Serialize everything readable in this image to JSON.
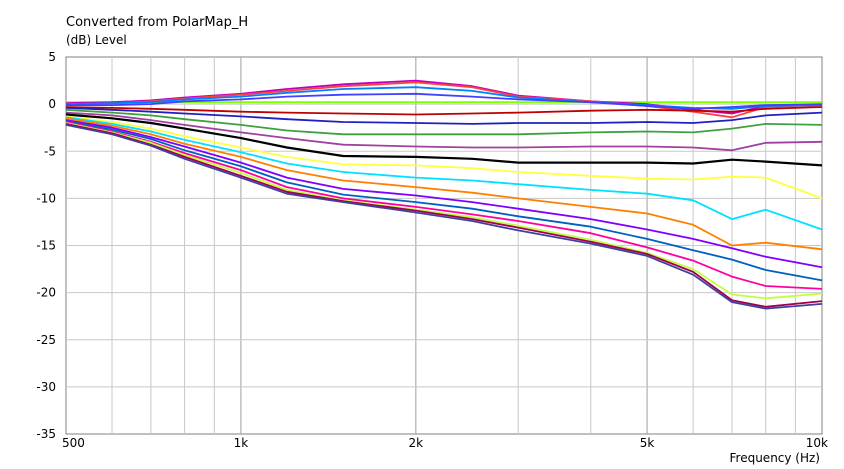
{
  "chart_data": {
    "type": "line",
    "title": "Converted from PolarMap_H",
    "ylabel": "(dB)  Level",
    "xlabel": "Frequency  (Hz)",
    "x_scale": "log",
    "xlim": [
      500,
      10000
    ],
    "ylim": [
      -35,
      5
    ],
    "grid": true,
    "legend": "none",
    "x_ticks": [
      {
        "value": 500,
        "label": "500"
      },
      {
        "value": 1000,
        "label": "1k"
      },
      {
        "value": 2000,
        "label": "2k"
      },
      {
        "value": 5000,
        "label": "5k"
      },
      {
        "value": 10000,
        "label": "10k"
      }
    ],
    "y_ticks": [
      {
        "value": 5,
        "label": "5"
      },
      {
        "value": 0,
        "label": "0"
      },
      {
        "value": -5,
        "label": "-5"
      },
      {
        "value": -10,
        "label": "-10"
      },
      {
        "value": -15,
        "label": "-15"
      },
      {
        "value": -20,
        "label": "-20"
      },
      {
        "value": -25,
        "label": "-25"
      },
      {
        "value": -30,
        "label": "-30"
      },
      {
        "value": -35,
        "label": "-35"
      }
    ],
    "x": [
      500,
      600,
      700,
      800,
      1000,
      1200,
      1500,
      2000,
      2500,
      3000,
      4000,
      5000,
      6000,
      7000,
      8000,
      10000
    ],
    "series": [
      {
        "color": "#80ff00",
        "values": [
          0.2,
          0.2,
          0.2,
          0.2,
          0.2,
          0.2,
          0.2,
          0.2,
          0.2,
          0.2,
          0.2,
          0.2,
          0.2,
          0.2,
          0.2,
          0.2
        ]
      },
      {
        "color": "#c000c0",
        "values": [
          0.1,
          0.2,
          0.4,
          0.7,
          1.1,
          1.6,
          2.1,
          2.5,
          1.9,
          0.9,
          0.3,
          0.0,
          -0.6,
          -1.0,
          -0.2,
          -0.1
        ]
      },
      {
        "color": "#ff4040",
        "values": [
          0.0,
          0.1,
          0.3,
          0.6,
          1.0,
          1.4,
          1.9,
          2.3,
          1.8,
          0.8,
          0.3,
          -0.2,
          -0.8,
          -1.4,
          -0.3,
          -0.1
        ]
      },
      {
        "color": "#0080ff",
        "values": [
          0.0,
          0.1,
          0.2,
          0.5,
          0.8,
          1.2,
          1.6,
          1.8,
          1.4,
          0.7,
          0.2,
          -0.1,
          -0.4,
          -0.5,
          -0.2,
          -0.1
        ]
      },
      {
        "color": "#4040ff",
        "values": [
          -0.1,
          -0.1,
          0.0,
          0.3,
          0.5,
          0.8,
          1.0,
          1.1,
          0.8,
          0.5,
          0.2,
          -0.2,
          -0.5,
          -0.3,
          -0.1,
          0.0
        ]
      },
      {
        "color": "#c00000",
        "values": [
          -0.3,
          -0.4,
          -0.5,
          -0.6,
          -0.8,
          -0.9,
          -1.0,
          -1.1,
          -1.0,
          -0.9,
          -0.7,
          -0.6,
          -0.7,
          -0.8,
          -0.5,
          -0.3
        ]
      },
      {
        "color": "#2020c0",
        "values": [
          -0.4,
          -0.6,
          -0.8,
          -1.0,
          -1.3,
          -1.6,
          -1.9,
          -2.0,
          -2.1,
          -2.0,
          -2.0,
          -1.9,
          -2.0,
          -1.7,
          -1.2,
          -0.9
        ]
      },
      {
        "color": "#40a040",
        "values": [
          -0.6,
          -0.9,
          -1.2,
          -1.6,
          -2.2,
          -2.8,
          -3.2,
          -3.2,
          -3.2,
          -3.2,
          -3.0,
          -2.9,
          -3.0,
          -2.6,
          -2.1,
          -2.2
        ]
      },
      {
        "color": "#a040a0",
        "values": [
          -0.9,
          -1.2,
          -1.7,
          -2.2,
          -3.0,
          -3.6,
          -4.3,
          -4.5,
          -4.6,
          -4.6,
          -4.5,
          -4.5,
          -4.6,
          -4.9,
          -4.1,
          -4.0
        ]
      },
      {
        "color": "#000000",
        "values": [
          -1.1,
          -1.5,
          -2.0,
          -2.6,
          -3.6,
          -4.6,
          -5.5,
          -5.6,
          -5.8,
          -6.2,
          -6.2,
          -6.2,
          -6.3,
          -5.9,
          -6.1,
          -6.5
        ]
      },
      {
        "color": "#ffff40",
        "values": [
          -1.3,
          -1.9,
          -2.6,
          -3.4,
          -4.6,
          -5.6,
          -6.4,
          -6.5,
          -6.8,
          -7.2,
          -7.6,
          -7.9,
          -8.0,
          -7.7,
          -7.8,
          -10.0
        ]
      },
      {
        "color": "#00e0ff",
        "values": [
          -1.4,
          -2.1,
          -2.9,
          -3.8,
          -5.1,
          -6.3,
          -7.2,
          -7.8,
          -8.1,
          -8.5,
          -9.1,
          -9.5,
          -10.2,
          -12.2,
          -11.2,
          -13.3
        ]
      },
      {
        "color": "#ff8000",
        "values": [
          -1.5,
          -2.3,
          -3.2,
          -4.2,
          -5.6,
          -7.0,
          -8.1,
          -8.8,
          -9.4,
          -10.0,
          -10.9,
          -11.6,
          -12.8,
          -15.0,
          -14.7,
          -15.4
        ]
      },
      {
        "color": "#8000ff",
        "values": [
          -1.7,
          -2.5,
          -3.5,
          -4.5,
          -6.2,
          -7.8,
          -9.0,
          -9.7,
          -10.4,
          -11.1,
          -12.2,
          -13.3,
          -14.3,
          -15.3,
          -16.2,
          -17.3
        ]
      },
      {
        "color": "#0060c0",
        "values": [
          -1.8,
          -2.7,
          -3.7,
          -4.9,
          -6.6,
          -8.3,
          -9.6,
          -10.4,
          -11.1,
          -11.9,
          -13.0,
          -14.3,
          -15.5,
          -16.5,
          -17.6,
          -18.7
        ]
      },
      {
        "color": "#ff00a0",
        "values": [
          -1.9,
          -2.9,
          -4.0,
          -5.2,
          -7.0,
          -8.8,
          -10.0,
          -10.9,
          -11.7,
          -12.4,
          -13.7,
          -15.2,
          -16.6,
          -18.3,
          -19.3,
          -19.6
        ]
      },
      {
        "color": "#c0ff40",
        "values": [
          -2.0,
          -3.0,
          -4.1,
          -5.4,
          -7.3,
          -9.1,
          -10.2,
          -11.2,
          -12.0,
          -12.9,
          -14.4,
          -15.8,
          -17.5,
          -20.2,
          -20.6,
          -20.1
        ]
      },
      {
        "color": "#a00050",
        "values": [
          -2.1,
          -3.1,
          -4.3,
          -5.6,
          -7.6,
          -9.3,
          -10.3,
          -11.3,
          -12.2,
          -13.1,
          -14.6,
          -15.9,
          -17.8,
          -20.8,
          -21.5,
          -20.9
        ]
      },
      {
        "color": "#4040a0",
        "values": [
          -2.2,
          -3.2,
          -4.4,
          -5.8,
          -7.8,
          -9.5,
          -10.4,
          -11.5,
          -12.4,
          -13.4,
          -14.8,
          -16.1,
          -18.1,
          -21.0,
          -21.7,
          -21.2
        ]
      }
    ]
  }
}
